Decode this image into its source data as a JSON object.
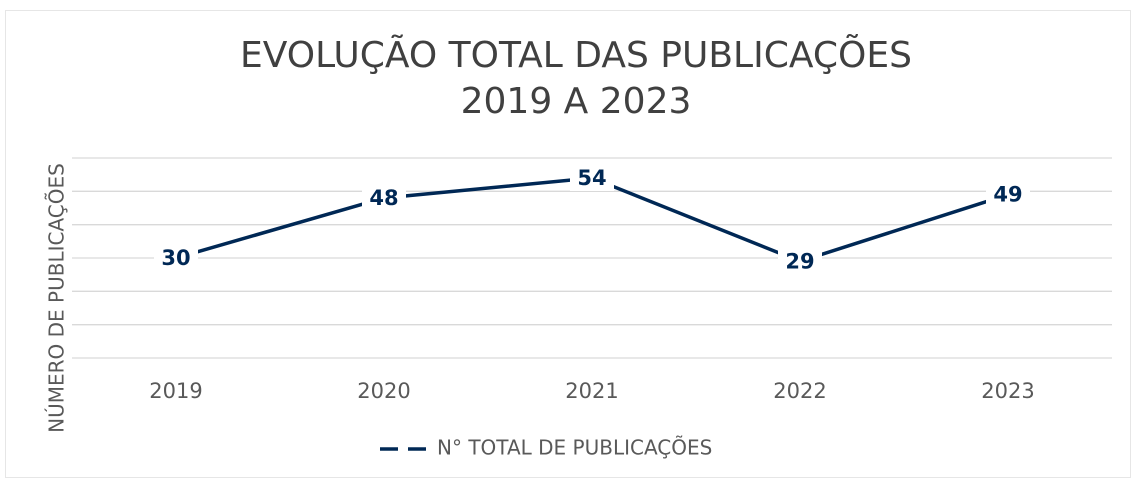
{
  "chart_data": {
    "type": "line",
    "title": [
      "EVOLUÇÃO TOTAL DAS PUBLICAÇÕES",
      "2019 A 2023"
    ],
    "ylabel": "NÚMERO DE PUBLICAÇÕES",
    "categories": [
      "2019",
      "2020",
      "2021",
      "2022",
      "2023"
    ],
    "series": [
      {
        "name": "N° TOTAL DE PUBLICAÇÕES",
        "color": "#002855",
        "values": [
          30,
          48,
          54,
          29,
          49
        ]
      }
    ],
    "ylim": [
      0,
      60
    ],
    "yticks": [
      0,
      10,
      20,
      30,
      40,
      50,
      60
    ],
    "grid": true,
    "legend": "bottom"
  }
}
